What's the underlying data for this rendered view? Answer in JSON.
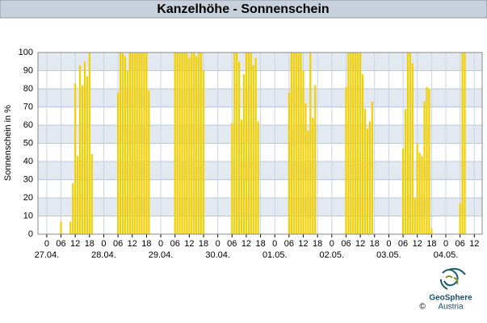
{
  "chart_data": {
    "type": "bar",
    "title": "Kanzelhöhe - Sonnenschein",
    "y_label": "Sonnenschein in %",
    "x": [
      6,
      10,
      11,
      12,
      13,
      14,
      15,
      16,
      17,
      18,
      19,
      30,
      31,
      32,
      33,
      34,
      35,
      36,
      37,
      38,
      39,
      40,
      41,
      42,
      43,
      54,
      55,
      56,
      57,
      58,
      59,
      60,
      61,
      62,
      63,
      64,
      65,
      66,
      78,
      79,
      80,
      81,
      82,
      83,
      84,
      85,
      86,
      87,
      88,
      89,
      102,
      103,
      104,
      105,
      106,
      107,
      108,
      109,
      110,
      111,
      112,
      113,
      126,
      127,
      128,
      129,
      130,
      131,
      132,
      133,
      134,
      135,
      136,
      137,
      150,
      151,
      152,
      153,
      154,
      155,
      156,
      157,
      158,
      159,
      160,
      161,
      162,
      174,
      175,
      176
    ],
    "values": [
      7,
      7,
      28,
      83,
      43,
      93,
      82,
      95,
      87,
      100,
      44,
      78,
      100,
      100,
      98,
      90,
      100,
      100,
      100,
      100,
      100,
      100,
      100,
      100,
      79,
      100,
      100,
      100,
      100,
      100,
      100,
      97,
      100,
      100,
      98,
      100,
      100,
      90,
      61,
      100,
      100,
      95,
      63,
      88,
      100,
      100,
      100,
      93,
      97,
      62,
      78,
      100,
      100,
      100,
      100,
      100,
      90,
      72,
      57,
      100,
      64,
      82,
      81,
      100,
      100,
      100,
      100,
      100,
      100,
      88,
      69,
      58,
      62,
      73,
      47,
      69,
      100,
      100,
      94,
      20,
      50,
      45,
      43,
      73,
      81,
      80,
      3,
      17,
      100,
      100
    ],
    "color": "#f2cf00",
    "xlim": [
      -3.7,
      183.3
    ],
    "xticks": [
      0,
      {
        "value": 6,
        "label": "06"
      },
      {
        "value": 12,
        "label": "12"
      },
      {
        "value": 18,
        "label": "18"
      },
      {
        "value": 24,
        "label": "0"
      },
      {
        "value": 30,
        "label": "06"
      },
      {
        "value": 36,
        "label": "12"
      },
      {
        "value": 42,
        "label": "18"
      },
      {
        "value": 48,
        "label": "0"
      },
      {
        "value": 54,
        "label": "06"
      },
      {
        "value": 60,
        "label": "12"
      },
      {
        "value": 66,
        "label": "18"
      },
      {
        "value": 72,
        "label": "0"
      },
      {
        "value": 78,
        "label": "06"
      },
      {
        "value": 84,
        "label": "12"
      },
      {
        "value": 90,
        "label": "18"
      },
      {
        "value": 96,
        "label": "0"
      },
      {
        "value": 102,
        "label": "06"
      },
      {
        "value": 108,
        "label": "12"
      },
      {
        "value": 114,
        "label": "18"
      },
      {
        "value": 120,
        "label": "0"
      },
      {
        "value": 126,
        "label": "06"
      },
      {
        "value": 132,
        "label": "12"
      },
      {
        "value": 138,
        "label": "18"
      },
      {
        "value": 144,
        "label": "0"
      },
      {
        "value": 150,
        "label": "06"
      },
      {
        "value": 156,
        "label": "12"
      },
      {
        "value": 162,
        "label": "18"
      },
      {
        "value": 168,
        "label": "0"
      },
      {
        "value": 174,
        "label": "06"
      },
      {
        "value": 180,
        "label": "12"
      }
    ],
    "day_labels": [
      {
        "value": 0,
        "label": "27.04."
      },
      {
        "value": 24,
        "label": "28.04."
      },
      {
        "value": 48,
        "label": "29.04."
      },
      {
        "value": 72,
        "label": "30.04."
      },
      {
        "value": 96,
        "label": "01.05."
      },
      {
        "value": 120,
        "label": "02.05."
      },
      {
        "value": 144,
        "label": "03.05."
      },
      {
        "value": 168,
        "label": "04.05."
      }
    ],
    "ylim": [
      0,
      100
    ],
    "yticks": [
      0,
      10,
      20,
      30,
      40,
      50,
      60,
      70,
      80,
      90,
      100
    ],
    "grid": true
  },
  "logo": {
    "name": "GeoSphere",
    "sub": "Austria",
    "copyright": "©"
  }
}
